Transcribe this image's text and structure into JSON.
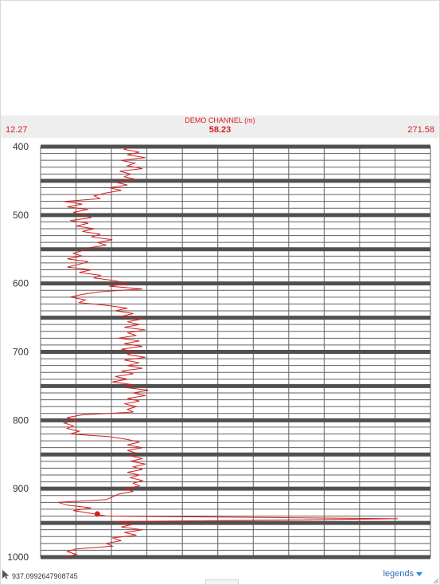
{
  "channel": {
    "title": "DEMO CHANNEL (m)",
    "current_value": "58.23",
    "min_label": "12.27",
    "max_label": "271.58"
  },
  "footer": {
    "cursor_readout": "937.0992647908745",
    "legends_label": "legends"
  },
  "colors": {
    "curve": "#d42020",
    "grid_major": "#505050",
    "grid_minor": "#606060",
    "header_band": "#eeeeee",
    "legends_link": "#2a6fb8"
  },
  "icons": {
    "cursor": "pointer-cursor-icon",
    "legends_toggle": "chevron-down-icon",
    "resize": "resize-handle-icon"
  },
  "chart_data": {
    "type": "line",
    "orientation": "vertical-depth",
    "title": "DEMO CHANNEL (m)",
    "xlim": [
      12.27,
      271.58
    ],
    "ylim": [
      400,
      1000
    ],
    "y_inverted": true,
    "y_ticks": [
      400,
      500,
      600,
      700,
      800,
      900,
      1000
    ],
    "y_tick_labels": [
      "400",
      "500",
      "600",
      "700",
      "800",
      "900",
      "1000"
    ],
    "grid": true,
    "marker": {
      "x": 50,
      "y": 937
    },
    "series": [
      {
        "points": [
          [
            400,
            72
          ],
          [
            404,
            68
          ],
          [
            408,
            78
          ],
          [
            412,
            70
          ],
          [
            416,
            82
          ],
          [
            420,
            66
          ],
          [
            424,
            75
          ],
          [
            428,
            70
          ],
          [
            432,
            80
          ],
          [
            436,
            65
          ],
          [
            440,
            72
          ],
          [
            444,
            68
          ],
          [
            448,
            76
          ],
          [
            452,
            62
          ],
          [
            456,
            70
          ],
          [
            460,
            58
          ],
          [
            464,
            66
          ],
          [
            468,
            55
          ],
          [
            472,
            48
          ],
          [
            476,
            52
          ],
          [
            480,
            28
          ],
          [
            484,
            40
          ],
          [
            488,
            30
          ],
          [
            492,
            44
          ],
          [
            496,
            34
          ],
          [
            500,
            40
          ],
          [
            504,
            46
          ],
          [
            508,
            32
          ],
          [
            512,
            44
          ],
          [
            516,
            36
          ],
          [
            520,
            48
          ],
          [
            524,
            40
          ],
          [
            528,
            52
          ],
          [
            532,
            46
          ],
          [
            536,
            60
          ],
          [
            540,
            50
          ],
          [
            544,
            56
          ],
          [
            548,
            44
          ],
          [
            552,
            40
          ],
          [
            556,
            34
          ],
          [
            560,
            40
          ],
          [
            564,
            30
          ],
          [
            568,
            44
          ],
          [
            572,
            38
          ],
          [
            576,
            30
          ],
          [
            580,
            46
          ],
          [
            584,
            38
          ],
          [
            588,
            52
          ],
          [
            592,
            48
          ],
          [
            596,
            62
          ],
          [
            600,
            70
          ],
          [
            604,
            58
          ],
          [
            608,
            80
          ],
          [
            612,
            52
          ],
          [
            616,
            40
          ],
          [
            620,
            32
          ],
          [
            624,
            42
          ],
          [
            628,
            38
          ],
          [
            632,
            56
          ],
          [
            636,
            70
          ],
          [
            640,
            62
          ],
          [
            644,
            74
          ],
          [
            648,
            66
          ],
          [
            652,
            80
          ],
          [
            656,
            70
          ],
          [
            660,
            78
          ],
          [
            664,
            68
          ],
          [
            668,
            82
          ],
          [
            672,
            70
          ],
          [
            676,
            76
          ],
          [
            680,
            64
          ],
          [
            684,
            78
          ],
          [
            688,
            68
          ],
          [
            692,
            80
          ],
          [
            696,
            66
          ],
          [
            700,
            76
          ],
          [
            704,
            70
          ],
          [
            708,
            82
          ],
          [
            712,
            68
          ],
          [
            716,
            78
          ],
          [
            720,
            70
          ],
          [
            724,
            80
          ],
          [
            728,
            66
          ],
          [
            732,
            74
          ],
          [
            736,
            62
          ],
          [
            740,
            70
          ],
          [
            744,
            60
          ],
          [
            748,
            74
          ],
          [
            752,
            68
          ],
          [
            756,
            84
          ],
          [
            760,
            74
          ],
          [
            764,
            82
          ],
          [
            768,
            70
          ],
          [
            772,
            78
          ],
          [
            776,
            68
          ],
          [
            780,
            76
          ],
          [
            784,
            70
          ],
          [
            788,
            74
          ],
          [
            792,
            40
          ],
          [
            796,
            30
          ],
          [
            800,
            36
          ],
          [
            804,
            28
          ],
          [
            808,
            34
          ],
          [
            812,
            30
          ],
          [
            816,
            38
          ],
          [
            820,
            32
          ],
          [
            824,
            58
          ],
          [
            828,
            70
          ],
          [
            832,
            78
          ],
          [
            836,
            70
          ],
          [
            840,
            80
          ],
          [
            844,
            70
          ],
          [
            848,
            76
          ],
          [
            852,
            72
          ],
          [
            856,
            80
          ],
          [
            860,
            72
          ],
          [
            864,
            82
          ],
          [
            868,
            74
          ],
          [
            872,
            80
          ],
          [
            876,
            70
          ],
          [
            880,
            78
          ],
          [
            884,
            72
          ],
          [
            888,
            80
          ],
          [
            892,
            74
          ],
          [
            896,
            78
          ],
          [
            900,
            68
          ],
          [
            904,
            74
          ],
          [
            908,
            64
          ],
          [
            912,
            60
          ],
          [
            916,
            56
          ],
          [
            920,
            24
          ],
          [
            924,
            30
          ],
          [
            928,
            46
          ],
          [
            932,
            34
          ],
          [
            936,
            46
          ],
          [
            940,
            56
          ],
          [
            944,
            250
          ],
          [
            948,
            62
          ],
          [
            952,
            74
          ],
          [
            956,
            66
          ],
          [
            960,
            80
          ],
          [
            964,
            68
          ],
          [
            968,
            76
          ],
          [
            972,
            60
          ],
          [
            976,
            66
          ],
          [
            980,
            56
          ],
          [
            984,
            60
          ],
          [
            988,
            36
          ],
          [
            992,
            30
          ],
          [
            996,
            36
          ],
          [
            1000,
            28
          ]
        ]
      }
    ]
  }
}
